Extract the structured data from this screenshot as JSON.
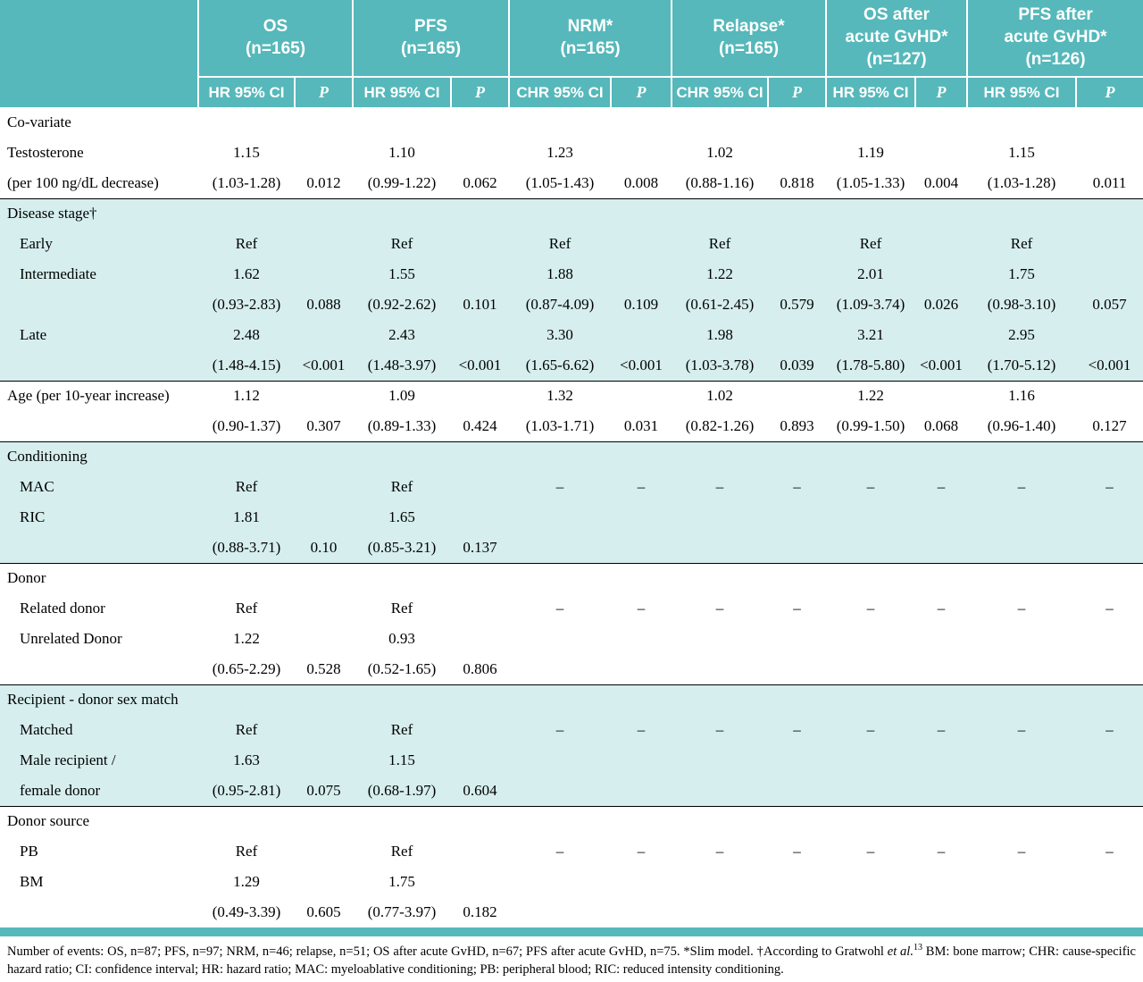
{
  "colors": {
    "header_teal": "#56b8ba",
    "band_teal": "#d6eeee",
    "rule_black": "#000000",
    "header_text": "#ffffff"
  },
  "table": {
    "col_groups": [
      {
        "title": "OS\n(n=165)",
        "sub_hr": "HR 95% CI",
        "sub_p": "P"
      },
      {
        "title": "PFS\n(n=165)",
        "sub_hr": "HR 95% CI",
        "sub_p": "P"
      },
      {
        "title": "NRM*\n(n=165)",
        "sub_hr": "CHR 95% CI",
        "sub_p": "P"
      },
      {
        "title": "Relapse*\n(n=165)",
        "sub_hr": "CHR 95% CI",
        "sub_p": "P"
      },
      {
        "title": "OS after\nacute GvHD*\n(n=127)",
        "sub_hr": "HR 95% CI",
        "sub_p": "P"
      },
      {
        "title": "PFS after\nacute GvHD*\n(n=126)",
        "sub_hr": "HR 95% CI",
        "sub_p": "P"
      }
    ],
    "rows": [
      {
        "label": "Co-variate",
        "band": "w",
        "rule": false,
        "indent": false,
        "cells": [
          "",
          "",
          "",
          "",
          "",
          "",
          "",
          "",
          "",
          "",
          "",
          ""
        ]
      },
      {
        "label": "Testosterone",
        "band": "w",
        "rule": false,
        "indent": false,
        "cells": [
          "1.15",
          "",
          "1.10",
          "",
          "1.23",
          "",
          "1.02",
          "",
          "1.19",
          "",
          "1.15",
          ""
        ]
      },
      {
        "label": "(per 100 ng/dL decrease)",
        "band": "w",
        "rule": false,
        "indent": false,
        "cells": [
          "(1.03-1.28)",
          "0.012",
          "(0.99-1.22)",
          "0.062",
          "(1.05-1.43)",
          "0.008",
          "(0.88-1.16)",
          "0.818",
          "(1.05-1.33)",
          "0.004",
          "(1.03-1.28)",
          "0.011"
        ]
      },
      {
        "label": "Disease stage†",
        "band": "t",
        "rule": true,
        "indent": false,
        "cells": [
          "",
          "",
          "",
          "",
          "",
          "",
          "",
          "",
          "",
          "",
          "",
          ""
        ]
      },
      {
        "label": "Early",
        "band": "t",
        "rule": false,
        "indent": true,
        "cells": [
          "Ref",
          "",
          "Ref",
          "",
          "Ref",
          "",
          "Ref",
          "",
          "Ref",
          "",
          "Ref",
          ""
        ]
      },
      {
        "label": "Intermediate",
        "band": "t",
        "rule": false,
        "indent": true,
        "cells": [
          "1.62",
          "",
          "1.55",
          "",
          "1.88",
          "",
          "1.22",
          "",
          "2.01",
          "",
          "1.75",
          ""
        ]
      },
      {
        "label": "",
        "band": "t",
        "rule": false,
        "indent": true,
        "cells": [
          "(0.93-2.83)",
          "0.088",
          "(0.92-2.62)",
          "0.101",
          "(0.87-4.09)",
          "0.109",
          "(0.61-2.45)",
          "0.579",
          "(1.09-3.74)",
          "0.026",
          "(0.98-3.10)",
          "0.057"
        ]
      },
      {
        "label": "Late",
        "band": "t",
        "rule": false,
        "indent": true,
        "cells": [
          "2.48",
          "",
          "2.43",
          "",
          "3.30",
          "",
          "1.98",
          "",
          "3.21",
          "",
          "2.95",
          ""
        ]
      },
      {
        "label": "",
        "band": "t",
        "rule": false,
        "indent": true,
        "cells": [
          "(1.48-4.15)",
          "<0.001",
          "(1.48-3.97)",
          "<0.001",
          "(1.65-6.62)",
          "<0.001",
          "(1.03-3.78)",
          "0.039",
          "(1.78-5.80)",
          "<0.001",
          "(1.70-5.12)",
          "<0.001"
        ]
      },
      {
        "label": "Age (per 10-year increase)",
        "band": "w",
        "rule": true,
        "indent": false,
        "cells": [
          "1.12",
          "",
          "1.09",
          "",
          "1.32",
          "",
          "1.02",
          "",
          "1.22",
          "",
          "1.16",
          ""
        ]
      },
      {
        "label": "",
        "band": "w",
        "rule": false,
        "indent": false,
        "cells": [
          "(0.90-1.37)",
          "0.307",
          "(0.89-1.33)",
          "0.424",
          "(1.03-1.71)",
          "0.031",
          "(0.82-1.26)",
          "0.893",
          "(0.99-1.50)",
          "0.068",
          "(0.96-1.40)",
          "0.127"
        ]
      },
      {
        "label": "Conditioning",
        "band": "t",
        "rule": true,
        "indent": false,
        "cells": [
          "",
          "",
          "",
          "",
          "",
          "",
          "",
          "",
          "",
          "",
          "",
          ""
        ]
      },
      {
        "label": "MAC",
        "band": "t",
        "rule": false,
        "indent": true,
        "cells": [
          "Ref",
          "",
          "Ref",
          "",
          "–",
          "–",
          "–",
          "–",
          "–",
          "–",
          "–",
          "–"
        ]
      },
      {
        "label": "RIC",
        "band": "t",
        "rule": false,
        "indent": true,
        "cells": [
          "1.81",
          "",
          "1.65",
          "",
          "",
          "",
          "",
          "",
          "",
          "",
          "",
          ""
        ]
      },
      {
        "label": "",
        "band": "t",
        "rule": false,
        "indent": true,
        "cells": [
          "(0.88-3.71)",
          "0.10",
          "(0.85-3.21)",
          "0.137",
          "",
          "",
          "",
          "",
          "",
          "",
          "",
          ""
        ]
      },
      {
        "label": "Donor",
        "band": "w",
        "rule": true,
        "indent": false,
        "cells": [
          "",
          "",
          "",
          "",
          "",
          "",
          "",
          "",
          "",
          "",
          "",
          ""
        ]
      },
      {
        "label": "Related donor",
        "band": "w",
        "rule": false,
        "indent": true,
        "cells": [
          "Ref",
          "",
          "Ref",
          "",
          "–",
          "–",
          "–",
          "–",
          "–",
          "–",
          "–",
          "–"
        ]
      },
      {
        "label": "Unrelated Donor",
        "band": "w",
        "rule": false,
        "indent": true,
        "cells": [
          "1.22",
          "",
          "0.93",
          "",
          "",
          "",
          "",
          "",
          "",
          "",
          "",
          ""
        ]
      },
      {
        "label": "",
        "band": "w",
        "rule": false,
        "indent": true,
        "cells": [
          "(0.65-2.29)",
          "0.528",
          "(0.52-1.65)",
          "0.806",
          "",
          "",
          "",
          "",
          "",
          "",
          "",
          ""
        ]
      },
      {
        "label": "Recipient - donor sex match",
        "band": "t",
        "rule": true,
        "indent": false,
        "cells": [
          "",
          "",
          "",
          "",
          "",
          "",
          "",
          "",
          "",
          "",
          "",
          ""
        ]
      },
      {
        "label": "Matched",
        "band": "t",
        "rule": false,
        "indent": true,
        "cells": [
          "Ref",
          "",
          "Ref",
          "",
          "–",
          "–",
          "–",
          "–",
          "–",
          "–",
          "–",
          "–"
        ]
      },
      {
        "label": "Male recipient /",
        "band": "t",
        "rule": false,
        "indent": true,
        "cells": [
          "1.63",
          "",
          "1.15",
          "",
          "",
          "",
          "",
          "",
          "",
          "",
          "",
          ""
        ]
      },
      {
        "label": "female donor",
        "band": "t",
        "rule": false,
        "indent": true,
        "cells": [
          "(0.95-2.81)",
          "0.075",
          "(0.68-1.97)",
          "0.604",
          "",
          "",
          "",
          "",
          "",
          "",
          "",
          ""
        ]
      },
      {
        "label": "Donor source",
        "band": "w",
        "rule": true,
        "indent": false,
        "cells": [
          "",
          "",
          "",
          "",
          "",
          "",
          "",
          "",
          "",
          "",
          "",
          ""
        ]
      },
      {
        "label": "PB",
        "band": "w",
        "rule": false,
        "indent": true,
        "cells": [
          "Ref",
          "",
          "Ref",
          "",
          "–",
          "–",
          "–",
          "–",
          "–",
          "–",
          "–",
          "–"
        ]
      },
      {
        "label": "BM",
        "band": "w",
        "rule": false,
        "indent": true,
        "cells": [
          "1.29",
          "",
          "1.75",
          "",
          "",
          "",
          "",
          "",
          "",
          "",
          "",
          ""
        ]
      },
      {
        "label": "",
        "band": "w",
        "rule": false,
        "indent": true,
        "cells": [
          "(0.49-3.39)",
          "0.605",
          "(0.77-3.97)",
          "0.182",
          "",
          "",
          "",
          "",
          "",
          "",
          "",
          ""
        ]
      }
    ]
  },
  "footnote": {
    "part1": "Number of events: OS, n=87; PFS, n=97; NRM, n=46; relapse, n=51; OS after acute GvHD, n=67; PFS after acute GvHD, n=75. *Slim model. †According to Gratwohl ",
    "italic": "et al.",
    "sup": "13",
    "part2": " BM: bone marrow; CHR: cause-specific hazard ratio; CI: confidence interval; HR: hazard ratio; MAC: myeloablative conditioning; PB: peripheral blood; RIC: reduced intensity conditioning."
  }
}
